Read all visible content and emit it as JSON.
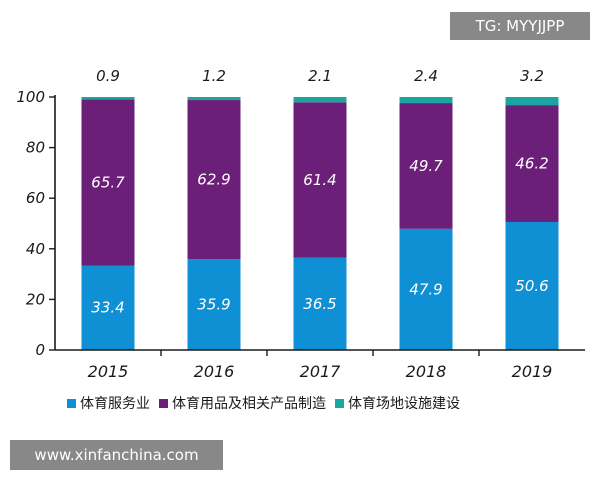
{
  "chart_data": {
    "type": "bar",
    "stacked": true,
    "categories": [
      "2015",
      "2016",
      "2017",
      "2018",
      "2019"
    ],
    "series": [
      {
        "name": "体育服务业",
        "color": "#0f8fd4",
        "values": [
          33.4,
          35.9,
          36.5,
          47.9,
          50.6
        ]
      },
      {
        "name": "体育用品及相关产品制造",
        "color": "#6b1f78",
        "values": [
          65.7,
          62.9,
          61.4,
          49.7,
          46.2
        ]
      },
      {
        "name": "体育场地设施建设",
        "color": "#1aa5a0",
        "values": [
          0.9,
          1.2,
          2.1,
          2.4,
          3.2
        ]
      }
    ],
    "top_labels": [
      "0.9",
      "1.2",
      "2.1",
      "2.4",
      "3.2"
    ],
    "value_labels": {
      "service": [
        "33.4",
        "35.9",
        "36.5",
        "47.9",
        "50.6"
      ],
      "manufacturing": [
        "65.7",
        "62.9",
        "61.4",
        "49.7",
        "46.2"
      ]
    },
    "yticks": [
      "0",
      "20",
      "40",
      "60",
      "80",
      "100"
    ],
    "ylim": [
      0,
      100
    ],
    "title": "",
    "xlabel": "",
    "ylabel": ""
  },
  "legend": {
    "items": [
      {
        "label": "体育服务业",
        "color": "#0f8fd4"
      },
      {
        "label": "体育用品及相关产品制造",
        "color": "#6b1f78"
      },
      {
        "label": "体育场地设施建设",
        "color": "#1aa5a0"
      }
    ]
  },
  "watermarks": {
    "top_right": "TG: MYYJJPP",
    "bottom_left": "www.xinfanchina.com"
  }
}
